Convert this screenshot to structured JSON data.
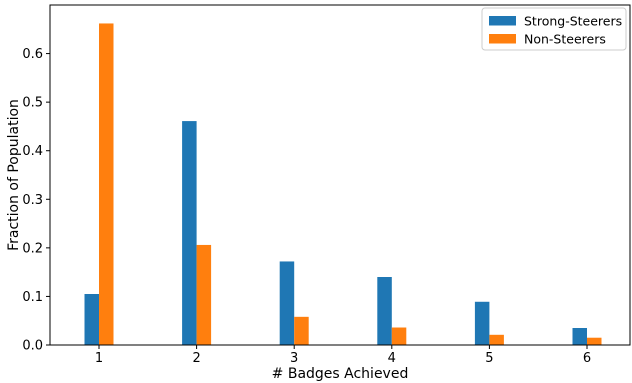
{
  "chart_data": {
    "type": "bar",
    "categories": [
      "1",
      "2",
      "3",
      "4",
      "5",
      "6"
    ],
    "series": [
      {
        "name": "Strong-Steerers",
        "color": "#1f77b4",
        "values": [
          0.105,
          0.461,
          0.172,
          0.14,
          0.089,
          0.035
        ]
      },
      {
        "name": "Non-Steerers",
        "color": "#ff7f0e",
        "values": [
          0.662,
          0.206,
          0.058,
          0.036,
          0.021,
          0.015
        ]
      }
    ],
    "xlabel": "# Badges Achieved",
    "ylabel": "Fraction of Population",
    "ylim": [
      0,
      0.7
    ],
    "yticks": [
      "0.0",
      "0.1",
      "0.2",
      "0.3",
      "0.4",
      "0.5",
      "0.6"
    ],
    "grid": false,
    "legend_position": "top-right"
  }
}
